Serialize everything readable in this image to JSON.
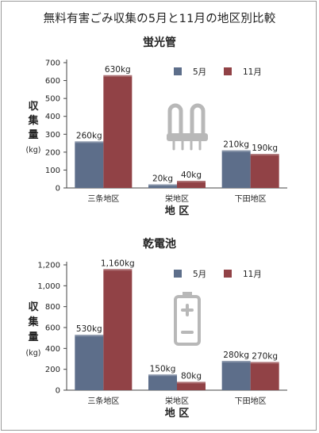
{
  "page_title": "無料有害ごみ収集の5月と11月の地区別比較",
  "colors": {
    "may": "#5d6e8a",
    "nov": "#914246",
    "axis": "#444444",
    "icon": "#b8b8b8"
  },
  "chart_data": [
    {
      "type": "bar",
      "title": "蛍光管",
      "ylabel": "収集量",
      "yunit": "(kg)",
      "xlabel": "地 区",
      "categories": [
        "三条地区",
        "栄地区",
        "下田地区"
      ],
      "ylim": [
        0,
        700
      ],
      "yticks": [
        0,
        100,
        200,
        300,
        400,
        500,
        600,
        700
      ],
      "ytick_labels": [
        "0",
        "100",
        "200",
        "300",
        "400",
        "500",
        "600",
        "700"
      ],
      "legend_position": "top-right",
      "icon": "fluorescent-tube-icon",
      "series": [
        {
          "name": "5月",
          "values": [
            260,
            20,
            210
          ],
          "labels": [
            "260kg",
            "20kg",
            "210kg"
          ]
        },
        {
          "name": "11月",
          "values": [
            630,
            40,
            190
          ],
          "labels": [
            "630kg",
            "40kg",
            "190kg"
          ]
        }
      ]
    },
    {
      "type": "bar",
      "title": "乾電池",
      "ylabel": "収集量",
      "yunit": "(kg)",
      "xlabel": "地 区",
      "categories": [
        "三条地区",
        "栄地区",
        "下田地区"
      ],
      "ylim": [
        0,
        1200
      ],
      "yticks": [
        0,
        200,
        400,
        600,
        800,
        1000,
        1200
      ],
      "ytick_labels": [
        "0",
        "200",
        "400",
        "600",
        "800",
        "1,000",
        "1,200"
      ],
      "legend_position": "top-right",
      "icon": "battery-icon",
      "series": [
        {
          "name": "5月",
          "values": [
            530,
            150,
            280
          ],
          "labels": [
            "530kg",
            "150kg",
            "280kg"
          ]
        },
        {
          "name": "11月",
          "values": [
            1160,
            80,
            270
          ],
          "labels": [
            "1,160kg",
            "80kg",
            "270kg"
          ]
        }
      ]
    }
  ]
}
